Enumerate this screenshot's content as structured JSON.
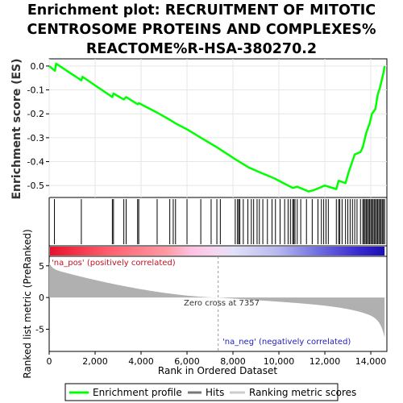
{
  "chart_data": {
    "type": "line",
    "title_lines": [
      "Enrichment plot: RECRUITMENT OF MITOTIC",
      "CENTROSOME PROTEINS AND COMPLEXES%",
      "REACTOME%R-HSA-380270.2"
    ],
    "xlabel": "Rank in Ordered Dataset",
    "es_ylabel": "Enrichment score (ES)",
    "metric_ylabel": "Ranked list metric (PreRanked)",
    "xlim": [
      0,
      14700
    ],
    "es_ylim": [
      -0.55,
      0.03
    ],
    "metric_ylim": [
      -8.5,
      6.5
    ],
    "x_ticks": [
      0,
      2000,
      4000,
      6000,
      8000,
      10000,
      12000,
      14000
    ],
    "x_tick_labels": [
      "0",
      "2,000",
      "4,000",
      "6,000",
      "8,000",
      "10,000",
      "12,000",
      "14,000"
    ],
    "es_ticks": [
      0.0,
      -0.1,
      -0.2,
      -0.3,
      -0.4,
      -0.5
    ],
    "es_tick_labels": [
      "0.0",
      "-0.1",
      "-0.2",
      "-0.3",
      "-0.4",
      "-0.5"
    ],
    "metric_ticks": [
      5,
      0,
      -5
    ],
    "metric_tick_labels": [
      "5",
      "0",
      "-5"
    ],
    "enrichment_profile": [
      [
        0,
        0.0
      ],
      [
        250,
        -0.02
      ],
      [
        300,
        0.01
      ],
      [
        1400,
        -0.06
      ],
      [
        1450,
        -0.045
      ],
      [
        2750,
        -0.13
      ],
      [
        2800,
        -0.115
      ],
      [
        3250,
        -0.14
      ],
      [
        3350,
        -0.13
      ],
      [
        3850,
        -0.16
      ],
      [
        3900,
        -0.155
      ],
      [
        4700,
        -0.195
      ],
      [
        5250,
        -0.225
      ],
      [
        5500,
        -0.24
      ],
      [
        6000,
        -0.265
      ],
      [
        6600,
        -0.3
      ],
      [
        7300,
        -0.34
      ],
      [
        8100,
        -0.39
      ],
      [
        8700,
        -0.425
      ],
      [
        9300,
        -0.45
      ],
      [
        9800,
        -0.47
      ],
      [
        10200,
        -0.49
      ],
      [
        10600,
        -0.51
      ],
      [
        10800,
        -0.505
      ],
      [
        11300,
        -0.525
      ],
      [
        11500,
        -0.52
      ],
      [
        12000,
        -0.5
      ],
      [
        12500,
        -0.515
      ],
      [
        12600,
        -0.48
      ],
      [
        12900,
        -0.49
      ],
      [
        13050,
        -0.44
      ],
      [
        13300,
        -0.37
      ],
      [
        13550,
        -0.36
      ],
      [
        13650,
        -0.34
      ],
      [
        13800,
        -0.28
      ],
      [
        13950,
        -0.24
      ],
      [
        14050,
        -0.2
      ],
      [
        14200,
        -0.18
      ],
      [
        14300,
        -0.12
      ],
      [
        14400,
        -0.09
      ],
      [
        14500,
        -0.05
      ],
      [
        14550,
        -0.03
      ],
      [
        14600,
        0.0
      ]
    ],
    "hits": [
      230,
      1400,
      2750,
      2800,
      3250,
      3350,
      3850,
      3900,
      4700,
      5250,
      5400,
      5500,
      6000,
      6600,
      7050,
      7300,
      7450,
      8100,
      8200,
      8250,
      8300,
      8450,
      8650,
      8800,
      8900,
      9050,
      9150,
      9300,
      9500,
      9700,
      9850,
      10050,
      10250,
      10400,
      10500,
      10600,
      10650,
      10700,
      10800,
      10950,
      11200,
      11450,
      11700,
      11850,
      11950,
      12050,
      12150,
      12500,
      12600,
      12650,
      12750,
      12900,
      13000,
      13100,
      13200,
      13300,
      13400,
      13550,
      13650,
      13700,
      13750,
      13800,
      13850,
      13900,
      13950,
      14000,
      14050,
      14100,
      14150,
      14200,
      14250,
      14300,
      14350,
      14400,
      14450,
      14500,
      14550,
      14600
    ],
    "zero_cross": 7357,
    "zero_cross_label": "Zero cross at 7357",
    "pos_label": "'na_pos' (positively correlated)",
    "neg_label": "'na_neg' (negatively correlated)",
    "legend": [
      "Enrichment profile",
      "Hits",
      "Ranking metric scores"
    ],
    "colors": {
      "profile": "#00ff00",
      "hits": "#000000",
      "metric": "#b0b0b0",
      "pos": "#e8122c",
      "neg": "#2020c8"
    }
  }
}
